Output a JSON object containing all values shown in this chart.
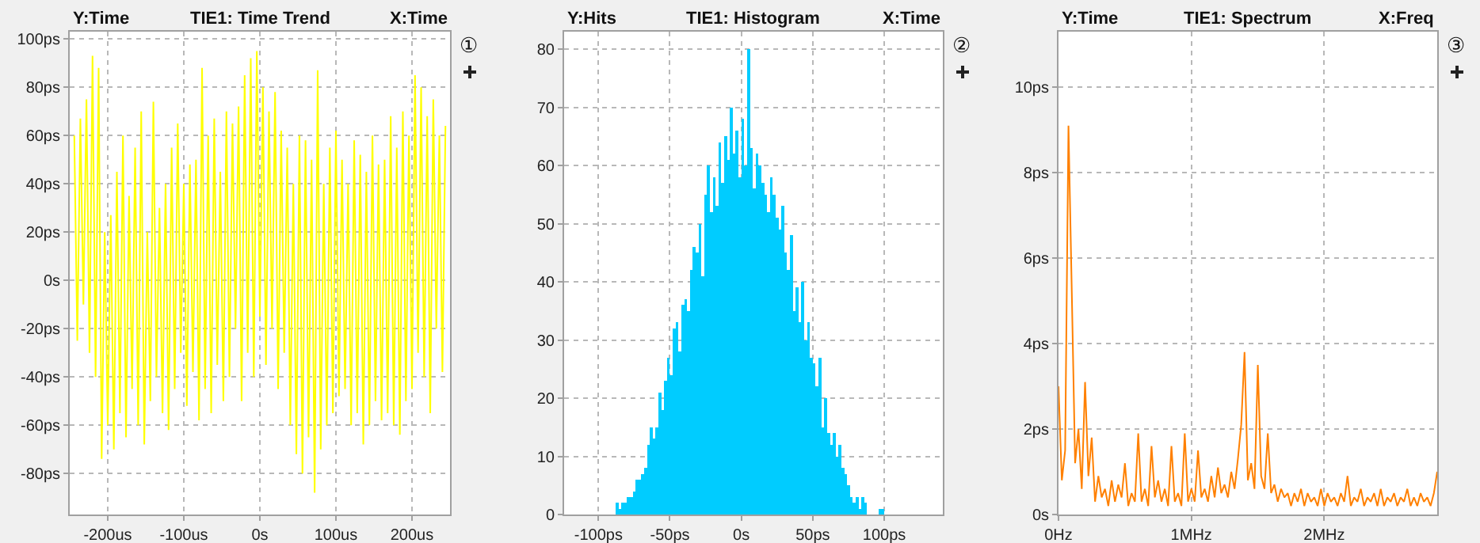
{
  "chart_data": [
    {
      "type": "line",
      "title": "TIE1: Time Trend",
      "ylabel": "Y:Time",
      "xlabel": "X:Time",
      "annotations": [
        "①"
      ],
      "grid": true,
      "legend": false,
      "marker": "none",
      "line_style": "solid",
      "xlim": [
        -250,
        250
      ],
      "ylim": [
        -97,
        103
      ],
      "xticks": [
        {
          "value": -200,
          "label": "-200us"
        },
        {
          "value": -100,
          "label": "-100us"
        },
        {
          "value": 0,
          "label": "0s"
        },
        {
          "value": 100,
          "label": "100us"
        },
        {
          "value": 200,
          "label": "200us"
        }
      ],
      "yticks": [
        {
          "value": -80,
          "label": "-80ps"
        },
        {
          "value": -60,
          "label": "-60ps"
        },
        {
          "value": -40,
          "label": "-40ps"
        },
        {
          "value": -20,
          "label": "-20ps"
        },
        {
          "value": 0,
          "label": "0s"
        },
        {
          "value": 20,
          "label": "20ps"
        },
        {
          "value": 40,
          "label": "40ps"
        },
        {
          "value": 60,
          "label": "60ps"
        },
        {
          "value": 80,
          "label": "80ps"
        },
        {
          "value": 100,
          "label": "100ps"
        }
      ],
      "x": [
        -244,
        -240,
        -236,
        -232,
        -228,
        -224,
        -220,
        -216,
        -212,
        -208,
        -204,
        -200,
        -196,
        -192,
        -188,
        -184,
        -180,
        -176,
        -172,
        -168,
        -164,
        -160,
        -156,
        -152,
        -148,
        -144,
        -140,
        -136,
        -132,
        -128,
        -124,
        -120,
        -116,
        -112,
        -108,
        -104,
        -100,
        -96,
        -92,
        -88,
        -84,
        -80,
        -76,
        -72,
        -68,
        -64,
        -60,
        -56,
        -52,
        -48,
        -44,
        -40,
        -36,
        -32,
        -28,
        -24,
        -20,
        -16,
        -12,
        -8,
        -4,
        0,
        4,
        8,
        12,
        16,
        20,
        24,
        28,
        32,
        36,
        40,
        44,
        48,
        52,
        56,
        60,
        64,
        68,
        72,
        76,
        80,
        84,
        88,
        92,
        96,
        100,
        104,
        108,
        112,
        116,
        120,
        124,
        128,
        132,
        136,
        140,
        144,
        148,
        152,
        156,
        160,
        164,
        168,
        172,
        176,
        180,
        184,
        188,
        192,
        196,
        200,
        204,
        208,
        212,
        216,
        220,
        224,
        228,
        232,
        236,
        240,
        244
      ],
      "series": [
        {
          "color": "#ffff00",
          "values": [
            60,
            -25,
            67,
            -10,
            75,
            -30,
            93,
            -40,
            88,
            -74,
            20,
            -60,
            27,
            -70,
            45,
            -55,
            60,
            -65,
            35,
            -45,
            55,
            -60,
            70,
            -68,
            20,
            -50,
            74,
            -40,
            30,
            -55,
            40,
            -62,
            55,
            -45,
            65,
            -30,
            40,
            -52,
            48,
            -38,
            50,
            -58,
            88,
            -45,
            60,
            -55,
            67,
            -35,
            45,
            -50,
            70,
            -40,
            65,
            -20,
            72,
            -50,
            85,
            -30,
            92,
            -40,
            95,
            -15,
            80,
            -35,
            70,
            -20,
            78,
            -45,
            62,
            -30,
            55,
            -60,
            40,
            -72,
            60,
            -80,
            58,
            -65,
            50,
            -88,
            87,
            -70,
            40,
            -60,
            55,
            -55,
            62,
            -48,
            50,
            -45,
            40,
            -60,
            58,
            -55,
            52,
            -68,
            45,
            -60,
            60,
            -50,
            48,
            -58,
            50,
            -55,
            68,
            -60,
            55,
            -64,
            70,
            -50,
            60,
            -45,
            85,
            -30,
            80,
            -40,
            68,
            -55,
            75,
            -20,
            60,
            -38,
            64
          ]
        }
      ]
    },
    {
      "type": "histogram",
      "title": "TIE1: Histogram",
      "ylabel": "Y:Hits",
      "xlabel": "X:Time",
      "annotations": [
        "②"
      ],
      "grid": true,
      "legend": false,
      "color": "#00ccff",
      "xlim": [
        -124,
        141
      ],
      "ylim": [
        0,
        83
      ],
      "xticks": [
        {
          "value": -100,
          "label": "-100ps"
        },
        {
          "value": -50,
          "label": "-50ps"
        },
        {
          "value": 0,
          "label": "0s"
        },
        {
          "value": 50,
          "label": "50ps"
        },
        {
          "value": 100,
          "label": "100ps"
        }
      ],
      "yticks": [
        0,
        10,
        20,
        30,
        40,
        50,
        60,
        70,
        80
      ],
      "bins": [
        -88,
        -86,
        -84,
        -82,
        -80,
        -78,
        -76,
        -74,
        -72,
        -70,
        -68,
        -66,
        -64,
        -62,
        -60,
        -58,
        -56,
        -54,
        -52,
        -50,
        -48,
        -46,
        -44,
        -42,
        -40,
        -38,
        -36,
        -34,
        -32,
        -30,
        -28,
        -26,
        -24,
        -22,
        -20,
        -18,
        -16,
        -14,
        -12,
        -10,
        -8,
        -6,
        -4,
        -2,
        0,
        2,
        4,
        6,
        8,
        10,
        12,
        14,
        16,
        18,
        20,
        22,
        24,
        26,
        28,
        30,
        32,
        34,
        36,
        38,
        40,
        42,
        44,
        46,
        48,
        50,
        52,
        54,
        56,
        58,
        60,
        62,
        64,
        66,
        68,
        70,
        72,
        74,
        76,
        78,
        80,
        82,
        84,
        86,
        88,
        90,
        92,
        94,
        96,
        98,
        100,
        102,
        104
      ],
      "values": [
        2,
        1,
        2,
        2,
        3,
        3,
        4,
        6,
        6,
        7,
        8,
        12,
        15,
        13,
        15,
        21,
        18,
        23,
        27,
        24,
        32,
        33,
        28,
        36,
        37,
        35,
        42,
        46,
        45,
        50,
        41,
        55,
        60,
        52,
        58,
        53,
        64,
        57,
        65,
        61,
        70,
        62,
        66,
        58,
        68,
        60,
        80,
        63,
        56,
        62,
        60,
        57,
        55,
        52,
        58,
        55,
        51,
        49,
        53,
        45,
        42,
        48,
        35,
        39,
        33,
        40,
        30,
        33,
        27,
        26,
        22,
        27,
        15,
        20,
        14,
        12,
        14,
        10,
        12,
        8,
        7,
        5,
        3,
        2,
        3,
        1,
        3,
        2,
        0,
        0,
        0,
        0,
        1,
        1,
        0,
        0
      ]
    },
    {
      "type": "line",
      "title": "TIE1: Spectrum",
      "ylabel": "Y:Time",
      "xlabel": "X:Freq",
      "annotations": [
        "③"
      ],
      "grid": true,
      "legend": false,
      "marker": "none",
      "line_style": "solid",
      "xlim": [
        0,
        2.85
      ],
      "ylim": [
        0,
        11.3
      ],
      "xticks": [
        {
          "value": 0,
          "label": "0Hz"
        },
        {
          "value": 1,
          "label": "1MHz"
        },
        {
          "value": 2,
          "label": "2MHz"
        }
      ],
      "yticks": [
        {
          "value": 0,
          "label": "0s"
        },
        {
          "value": 2,
          "label": "2ps"
        },
        {
          "value": 4,
          "label": "4ps"
        },
        {
          "value": 6,
          "label": "6ps"
        },
        {
          "value": 8,
          "label": "8ps"
        },
        {
          "value": 10,
          "label": "10ps"
        }
      ],
      "x": [
        0,
        0.025,
        0.05,
        0.075,
        0.1,
        0.125,
        0.15,
        0.175,
        0.2,
        0.225,
        0.25,
        0.275,
        0.3,
        0.325,
        0.35,
        0.375,
        0.4,
        0.425,
        0.45,
        0.475,
        0.5,
        0.525,
        0.55,
        0.575,
        0.6,
        0.625,
        0.65,
        0.675,
        0.7,
        0.725,
        0.75,
        0.775,
        0.8,
        0.825,
        0.85,
        0.875,
        0.9,
        0.925,
        0.95,
        0.975,
        1.0,
        1.025,
        1.05,
        1.075,
        1.1,
        1.125,
        1.15,
        1.175,
        1.2,
        1.225,
        1.25,
        1.275,
        1.3,
        1.325,
        1.35,
        1.375,
        1.4,
        1.425,
        1.45,
        1.475,
        1.5,
        1.525,
        1.55,
        1.575,
        1.6,
        1.625,
        1.65,
        1.675,
        1.7,
        1.725,
        1.75,
        1.775,
        1.8,
        1.825,
        1.85,
        1.875,
        1.9,
        1.925,
        1.95,
        1.975,
        2.0,
        2.025,
        2.05,
        2.075,
        2.1,
        2.125,
        2.15,
        2.175,
        2.2,
        2.225,
        2.25,
        2.275,
        2.3,
        2.325,
        2.35,
        2.375,
        2.4,
        2.425,
        2.45,
        2.475,
        2.5,
        2.525,
        2.55,
        2.575,
        2.6,
        2.625,
        2.65,
        2.675,
        2.7,
        2.725,
        2.75,
        2.775,
        2.8,
        2.825,
        2.85
      ],
      "series": [
        {
          "color": "#ff8000",
          "values": [
            3.0,
            0.8,
            1.5,
            9.1,
            5.2,
            1.2,
            2.0,
            0.6,
            3.1,
            0.9,
            1.8,
            0.3,
            0.9,
            0.4,
            0.6,
            0.2,
            0.8,
            0.3,
            0.7,
            0.4,
            1.2,
            0.2,
            0.5,
            0.3,
            1.9,
            0.3,
            0.6,
            0.2,
            1.6,
            0.4,
            0.8,
            0.3,
            0.6,
            0.2,
            1.6,
            0.3,
            0.5,
            0.2,
            1.9,
            0.3,
            0.6,
            0.3,
            1.5,
            0.4,
            0.6,
            0.3,
            0.9,
            0.4,
            1.1,
            0.5,
            0.7,
            0.4,
            1.0,
            0.6,
            1.3,
            2.1,
            3.8,
            0.8,
            1.2,
            0.6,
            3.5,
            0.9,
            0.6,
            1.9,
            0.5,
            0.7,
            0.3,
            0.6,
            0.4,
            0.5,
            0.2,
            0.5,
            0.3,
            0.6,
            0.2,
            0.5,
            0.3,
            0.4,
            0.2,
            0.6,
            0.2,
            0.5,
            0.3,
            0.4,
            0.2,
            0.5,
            0.3,
            0.9,
            0.2,
            0.4,
            0.3,
            0.6,
            0.2,
            0.4,
            0.3,
            0.5,
            0.2,
            0.6,
            0.2,
            0.4,
            0.3,
            0.5,
            0.2,
            0.4,
            0.3,
            0.6,
            0.2,
            0.4,
            0.2,
            0.5,
            0.3,
            0.4,
            0.2,
            0.5,
            1.0
          ]
        }
      ]
    }
  ]
}
